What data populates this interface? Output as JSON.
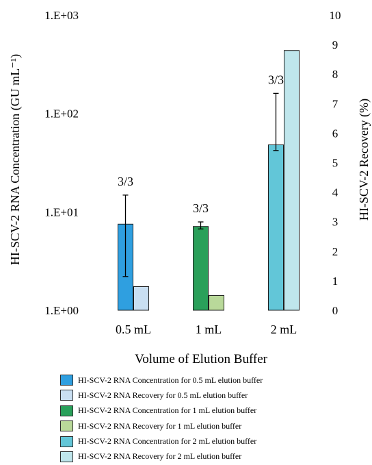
{
  "chart_data": {
    "type": "bar",
    "xlabel": "Volume of Elution Buffer",
    "categories": [
      "0.5 mL",
      "1 mL",
      "2 mL"
    ],
    "left_axis": {
      "label": "HI-SCV-2 RNA Concentration (GU mL⁻¹)",
      "scale": "log",
      "ylim": [
        1,
        1000
      ],
      "tick_labels": [
        "1.E+00",
        "1.E+01",
        "1.E+02",
        "1.E+03"
      ]
    },
    "right_axis": {
      "label": "HI-SCV-2 Recovery (%)",
      "ylim": [
        0,
        10
      ],
      "tick_labels": [
        "0",
        "1",
        "2",
        "3",
        "4",
        "5",
        "6",
        "7",
        "8",
        "9",
        "10"
      ]
    },
    "series": [
      {
        "name": "HI-SCV-2 RNA Concentration for 0.5 mL elution buffer",
        "axis": "left",
        "category": "0.5 mL",
        "value": 7.5,
        "err_low": 2.2,
        "err_high": 14.8,
        "color": "#2f9fe0"
      },
      {
        "name": "HI-SCV-2 RNA Recovery for 0.5 mL elution buffer",
        "axis": "right",
        "category": "0.5 mL",
        "value": 0.8,
        "color": "#c9dff2"
      },
      {
        "name": "HI-SCV-2 RNA Concentration for 1 mL elution buffer",
        "axis": "left",
        "category": "1 mL",
        "value": 7.1,
        "err_low": 6.7,
        "err_high": 7.9,
        "color": "#2aa05a"
      },
      {
        "name": "HI-SCV-2 RNA Recovery for 1 mL elution buffer",
        "axis": "right",
        "category": "1 mL",
        "value": 0.5,
        "color": "#b9d99a"
      },
      {
        "name": "HI-SCV-2 RNA Concentration for 2 mL elution buffer",
        "axis": "left",
        "category": "2 mL",
        "value": 48,
        "err_low": 42,
        "err_high": 160,
        "color": "#62c6d8"
      },
      {
        "name": "HI-SCV-2 RNA Recovery for 2 mL elution buffer",
        "axis": "right",
        "category": "2 mL",
        "value": 8.8,
        "color": "#bfe6ec"
      }
    ],
    "annotations": [
      {
        "category": "0.5 mL",
        "text": "3/3"
      },
      {
        "category": "1 mL",
        "text": "3/3"
      },
      {
        "category": "2 mL",
        "text": "3/3"
      }
    ],
    "grid": false,
    "legend_position": "bottom"
  }
}
